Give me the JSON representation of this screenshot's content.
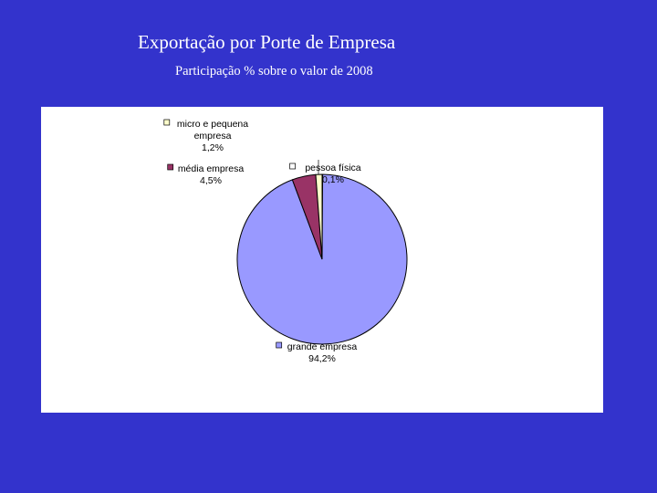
{
  "slide": {
    "title": "Exportação por Porte de Empresa",
    "subtitle": "Participação % sobre o valor de 2008"
  },
  "colors": {
    "background": "#3333cc",
    "panel": "#ffffff"
  },
  "chart_data": {
    "type": "pie",
    "title": "",
    "series": [
      {
        "values": [
          {
            "label_lines": [
              "pessoa física"
            ],
            "value_label": "0,1%",
            "value": 0.1,
            "color": "#ffffff"
          },
          {
            "label_lines": [
              "grande empresa"
            ],
            "value_label": "94,2%",
            "value": 94.2,
            "color": "#9999ff"
          },
          {
            "label_lines": [
              "média empresa"
            ],
            "value_label": "4,5%",
            "value": 4.5,
            "color": "#993366"
          },
          {
            "label_lines": [
              "micro e pequena",
              "empresa"
            ],
            "value_label": "1,2%",
            "value": 1.2,
            "color": "#ffffcc"
          }
        ]
      }
    ],
    "legend": "none",
    "data_labels": "category-and-percent",
    "start_angle_deg": 0,
    "direction": "clockwise"
  }
}
